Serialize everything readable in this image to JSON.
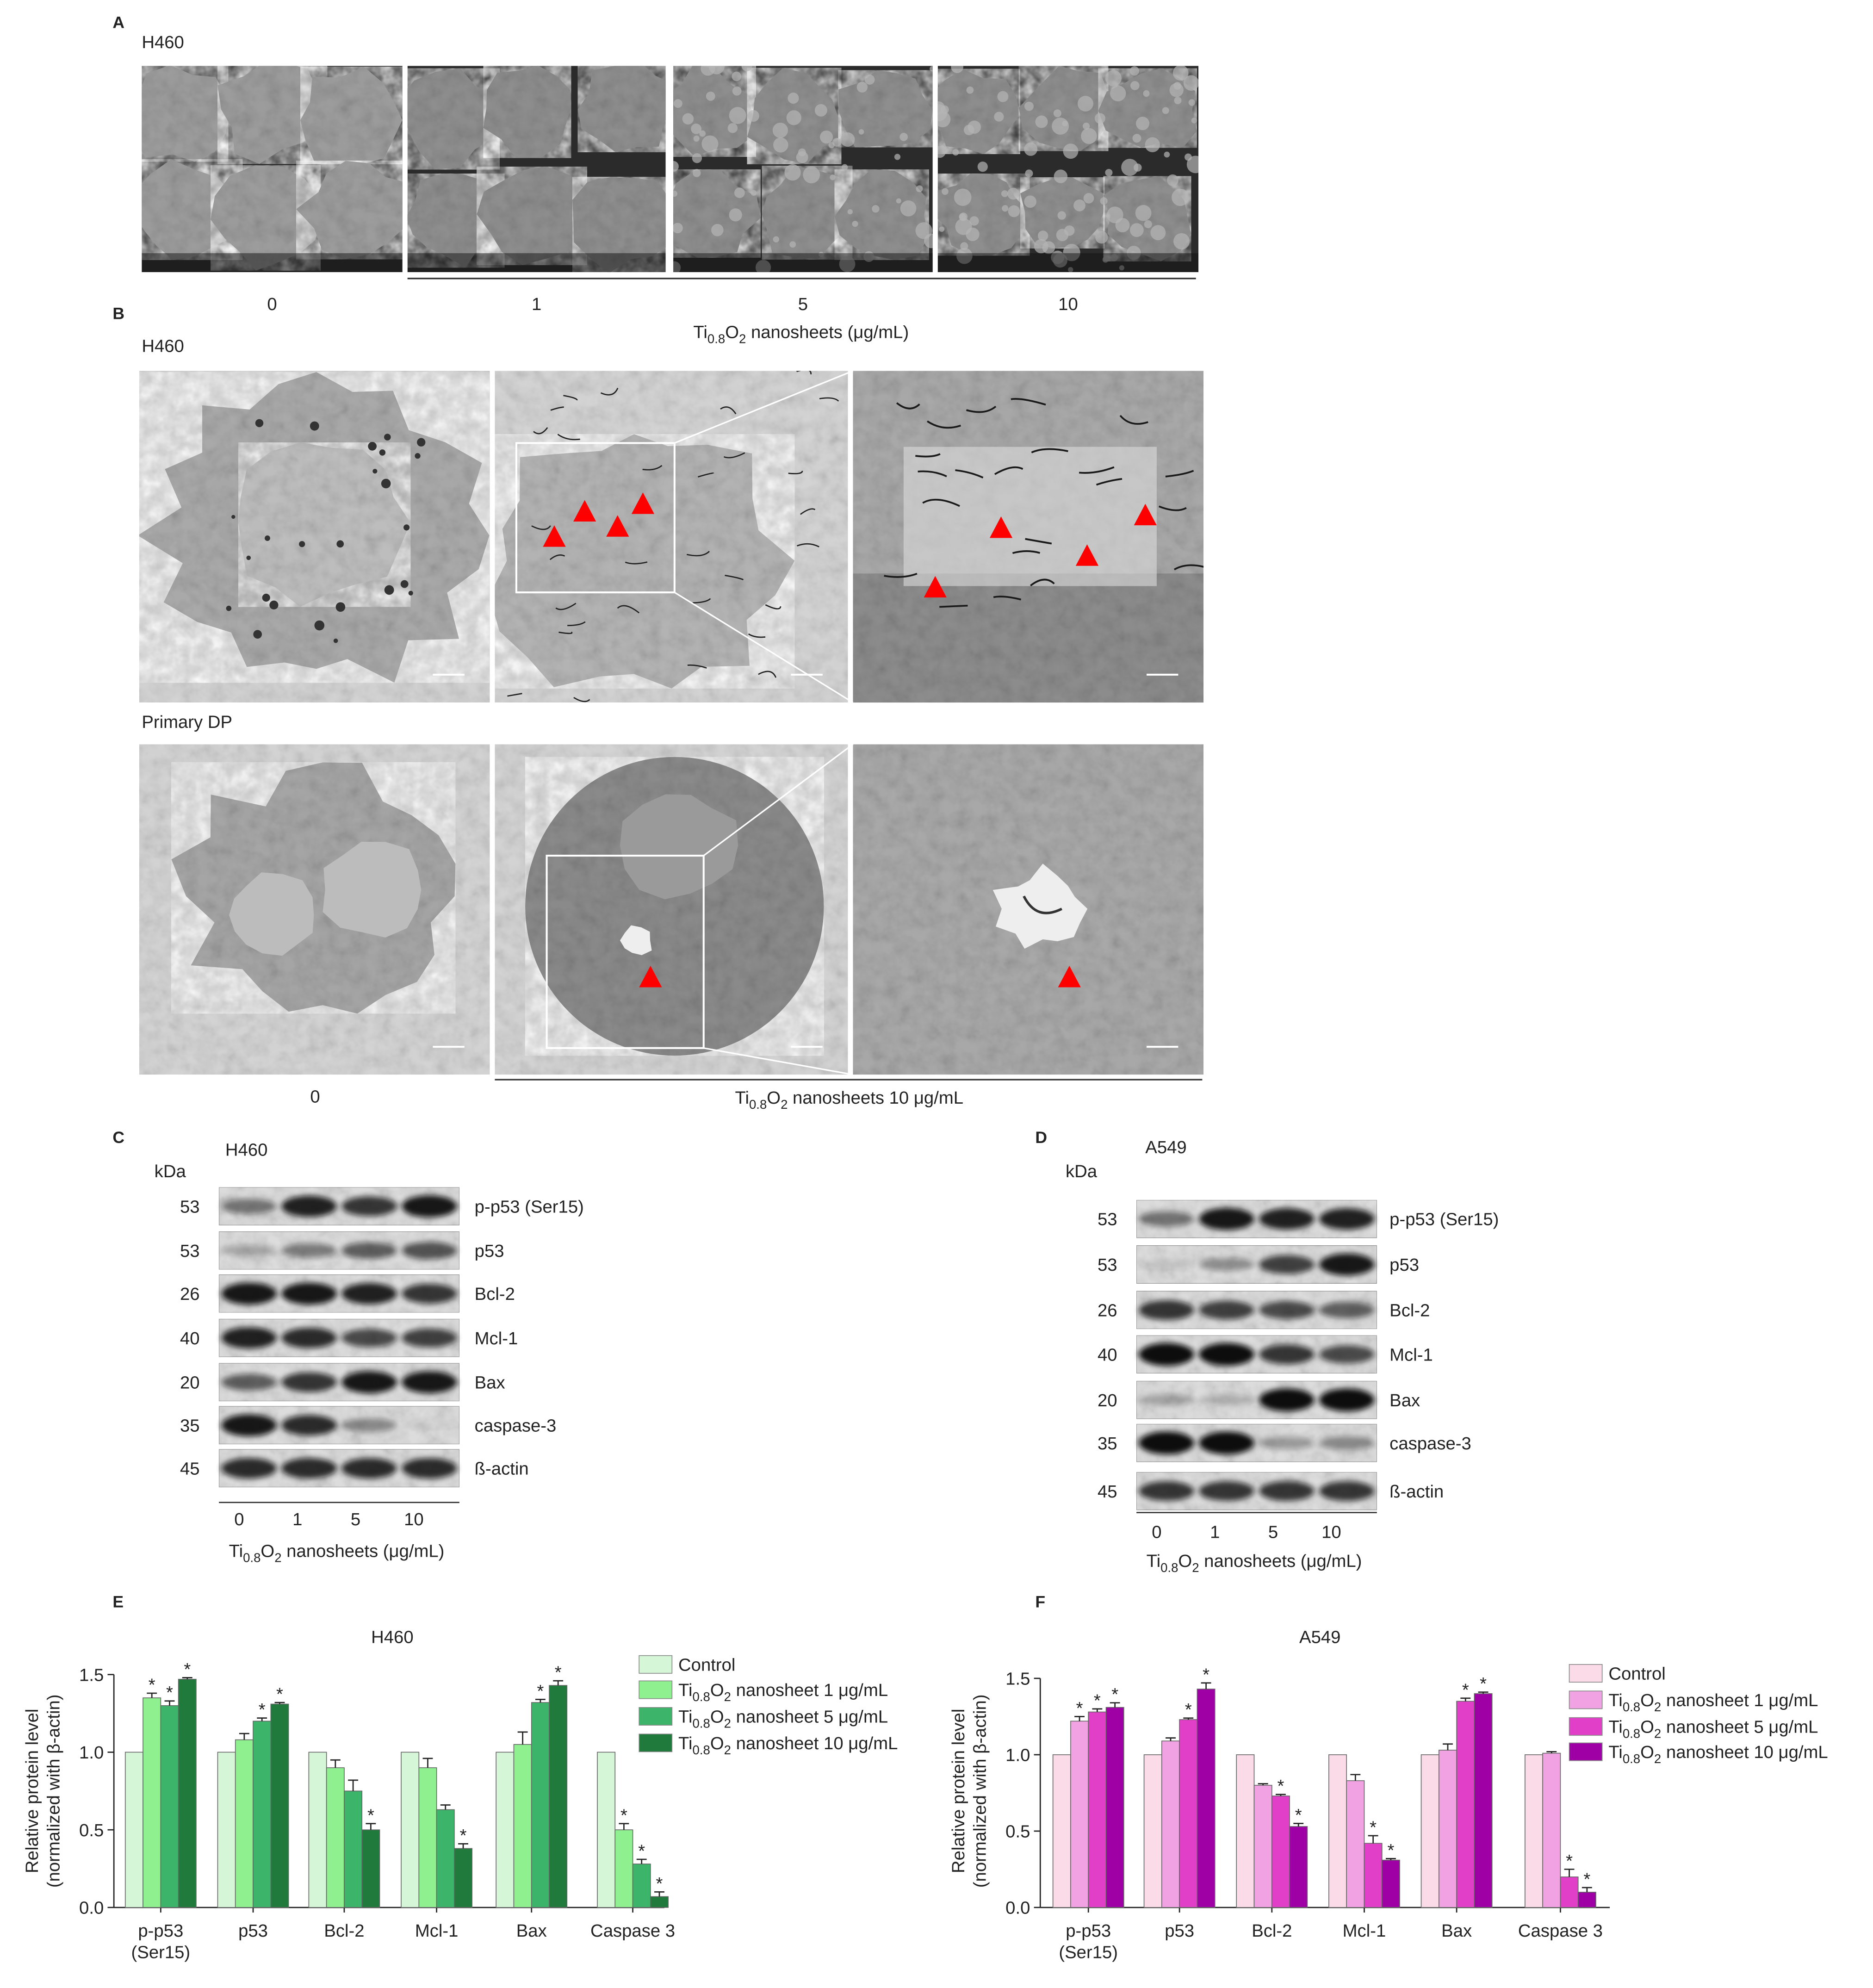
{
  "panel_a": {
    "label": "A",
    "cell_line": "H460",
    "concentrations": [
      "0",
      "1",
      "5",
      "10"
    ],
    "axis_label": [
      "Ti",
      "0.8",
      "O",
      "2",
      " nanosheets (μg/mL)"
    ]
  },
  "panel_b": {
    "label": "B",
    "rows": [
      {
        "cell_line": "H460"
      },
      {
        "cell_line": "Primary DP"
      }
    ],
    "control_label": "0",
    "treatment_label": [
      "Ti",
      "0.8",
      "O",
      "2",
      " nanosheets 10 μg/mL"
    ]
  },
  "panel_c": {
    "label": "C",
    "cell_line": "H460",
    "unit": "kDa",
    "proteins": [
      {
        "name": "p-p53 (Ser15)",
        "kda": 53
      },
      {
        "name": "p53",
        "kda": 53
      },
      {
        "name": "Bcl-2",
        "kda": 26
      },
      {
        "name": "Mcl-1",
        "kda": 40
      },
      {
        "name": "Bax",
        "kda": 20
      },
      {
        "name": "caspase-3",
        "kda": 35
      },
      {
        "name": "ß-actin",
        "kda": 45
      }
    ],
    "lanes": [
      "0",
      "1",
      "5",
      "10"
    ],
    "axis_label": [
      "Ti",
      "0.8",
      "O",
      "2",
      " nanosheets (μg/mL)"
    ]
  },
  "panel_d": {
    "label": "D",
    "cell_line": "A549",
    "unit": "kDa",
    "proteins": [
      {
        "name": "p-p53 (Ser15)",
        "kda": 53
      },
      {
        "name": "p53",
        "kda": 53
      },
      {
        "name": "Bcl-2",
        "kda": 26
      },
      {
        "name": "Mcl-1",
        "kda": 40
      },
      {
        "name": "Bax",
        "kda": 20
      },
      {
        "name": "caspase-3",
        "kda": 35
      },
      {
        "name": "ß-actin",
        "kda": 45
      }
    ],
    "lanes": [
      "0",
      "1",
      "5",
      "10"
    ],
    "axis_label": [
      "Ti",
      "0.8",
      "O",
      "2",
      " nanosheets (μg/mL)"
    ]
  },
  "chart_data": [
    {
      "type": "bar",
      "panel_label": "E",
      "title": "H460",
      "ylabel": [
        "Relative protein level",
        "(normalized with β-actin)"
      ],
      "categories": [
        [
          "p-p53",
          "(Ser15)"
        ],
        "p53",
        "Bcl-2",
        "Mcl-1",
        "Bax",
        "Caspase 3"
      ],
      "ylim": [
        0,
        1.5
      ],
      "yticks": [
        {
          "value": 0,
          "label": "0.0"
        },
        0.5,
        {
          "value": 1,
          "label": "1.0"
        },
        1.5
      ],
      "legend": "right",
      "series": [
        {
          "name": "Control",
          "color": "#d6f6d8",
          "values": [
            1.0,
            1.0,
            1.0,
            1.0,
            1.0,
            1.0
          ],
          "errors": [
            0,
            0,
            0,
            0,
            0,
            0
          ],
          "markers": [
            null,
            null,
            null,
            null,
            null,
            null
          ]
        },
        {
          "name": [
            "Ti",
            "0.8",
            "O",
            "2",
            " nanosheet 1 μg/mL"
          ],
          "color": "#8ff08f",
          "values": [
            1.35,
            1.08,
            0.9,
            0.9,
            1.05,
            0.5
          ],
          "errors": [
            0.03,
            0.04,
            0.05,
            0.06,
            0.08,
            0.04
          ],
          "markers": [
            "*",
            null,
            null,
            null,
            null,
            "*"
          ]
        },
        {
          "name": [
            "Ti",
            "0.8",
            "O",
            "2",
            " nanosheet 5 μg/mL"
          ],
          "color": "#3cb46a",
          "values": [
            1.3,
            1.2,
            0.75,
            0.63,
            1.32,
            0.28
          ],
          "errors": [
            0.03,
            0.02,
            0.07,
            0.03,
            0.02,
            0.03
          ],
          "markers": [
            "*",
            "*",
            null,
            null,
            "*",
            "*"
          ]
        },
        {
          "name": [
            "Ti",
            "0.8",
            "O",
            "2",
            " nanosheet 10 μg/mL"
          ],
          "color": "#1f7a3c",
          "values": [
            1.47,
            1.31,
            0.5,
            0.38,
            1.43,
            0.07
          ],
          "errors": [
            0.01,
            0.01,
            0.04,
            0.03,
            0.03,
            0.03
          ],
          "markers": [
            "*",
            "*",
            "*",
            "*",
            "*",
            "*"
          ]
        }
      ]
    },
    {
      "type": "bar",
      "panel_label": "F",
      "title": "A549",
      "ylabel": [
        "Relative protein level",
        "(normalized with β-actin)"
      ],
      "categories": [
        [
          "p-p53",
          "(Ser15)"
        ],
        "p53",
        "Bcl-2",
        "Mcl-1",
        "Bax",
        "Caspase 3"
      ],
      "ylim": [
        0,
        1.5
      ],
      "yticks": [
        {
          "value": 0,
          "label": "0.0"
        },
        0.5,
        {
          "value": 1,
          "label": "1.0"
        },
        1.5
      ],
      "legend": "right",
      "series": [
        {
          "name": "Control",
          "color": "#fbdbe8",
          "values": [
            1.0,
            1.0,
            1.0,
            1.0,
            1.0,
            1.0
          ],
          "errors": [
            0,
            0,
            0,
            0,
            0,
            0
          ],
          "markers": [
            null,
            null,
            null,
            null,
            null,
            null
          ]
        },
        {
          "name": [
            "Ti",
            "0.8",
            "O",
            "2",
            " nanosheet 1 μg/mL"
          ],
          "color": "#f0a2e2",
          "values": [
            1.22,
            1.09,
            0.8,
            0.83,
            1.03,
            1.01
          ],
          "errors": [
            0.03,
            0.02,
            0.01,
            0.04,
            0.04,
            0.01
          ],
          "markers": [
            "*",
            null,
            null,
            null,
            null,
            null
          ]
        },
        {
          "name": [
            "Ti",
            "0.8",
            "O",
            "2",
            " nanosheet 5 μg/mL"
          ],
          "color": "#e23fc9",
          "values": [
            1.28,
            1.23,
            0.73,
            0.42,
            1.35,
            0.2
          ],
          "errors": [
            0.02,
            0.01,
            0.01,
            0.05,
            0.02,
            0.05
          ],
          "markers": [
            "*",
            "*",
            "*",
            "*",
            "*",
            "*"
          ]
        },
        {
          "name": [
            "Ti",
            "0.8",
            "O",
            "2",
            " nanosheet 10 μg/mL"
          ],
          "color": "#9e00a6",
          "values": [
            1.31,
            1.43,
            0.53,
            0.31,
            1.4,
            0.1
          ],
          "errors": [
            0.03,
            0.04,
            0.02,
            0.01,
            0.01,
            0.03
          ],
          "markers": [
            "*",
            "*",
            "*",
            "*",
            "*",
            "*"
          ]
        }
      ]
    }
  ]
}
